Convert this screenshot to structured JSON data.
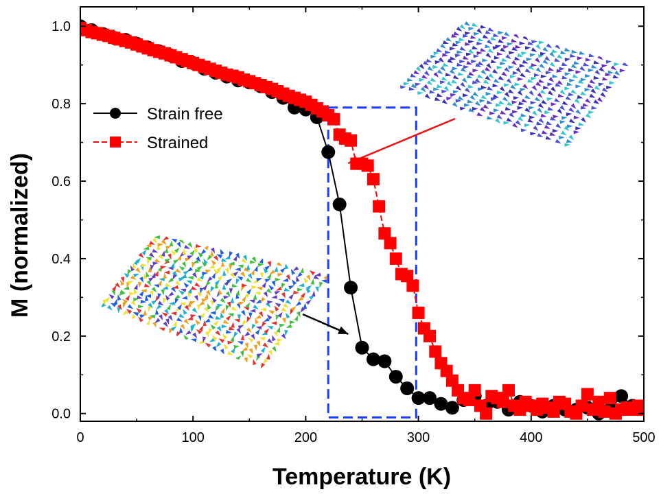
{
  "chart_data": {
    "type": "scatter",
    "title": "",
    "xlabel": "Temperature (K)",
    "ylabel": "M (normalized)",
    "xlim": [
      0,
      500
    ],
    "ylim": [
      -0.02,
      1.05
    ],
    "xticks": [
      0,
      100,
      200,
      300,
      400,
      500
    ],
    "yticks": [
      0.0,
      0.2,
      0.4,
      0.6,
      0.8,
      1.0
    ],
    "xtick_labels": [
      "0",
      "100",
      "200",
      "300",
      "400",
      "500"
    ],
    "ytick_labels": [
      "0.0",
      "0.2",
      "0.4",
      "0.6",
      "0.8",
      "1.0"
    ],
    "grid": false,
    "legend_position": "upper-left",
    "series": [
      {
        "name": "Strain free",
        "color": "#000000",
        "marker": "circle",
        "line_style": "solid",
        "x": [
          0,
          10,
          20,
          30,
          40,
          50,
          60,
          70,
          80,
          90,
          100,
          110,
          120,
          130,
          140,
          150,
          160,
          170,
          180,
          190,
          200,
          210,
          220,
          230,
          240,
          250,
          260,
          270,
          280,
          290,
          300,
          310,
          320,
          330,
          340,
          350,
          360,
          370,
          380,
          390,
          400,
          410,
          420,
          430,
          440,
          450,
          460,
          470,
          480,
          490,
          500
        ],
        "y": [
          1.0,
          0.99,
          0.98,
          0.97,
          0.965,
          0.955,
          0.945,
          0.935,
          0.925,
          0.91,
          0.905,
          0.89,
          0.88,
          0.87,
          0.86,
          0.855,
          0.845,
          0.83,
          0.815,
          0.79,
          0.785,
          0.765,
          0.675,
          0.54,
          0.325,
          0.17,
          0.14,
          0.135,
          0.095,
          0.065,
          0.04,
          0.04,
          0.025,
          0.015,
          0.035,
          0.045,
          0.02,
          0.03,
          0.01,
          0.03,
          0.02,
          0.005,
          0.02,
          0.01,
          0.01,
          0.015,
          0.0,
          0.01,
          0.045,
          0.02,
          0.015
        ]
      },
      {
        "name": "Strained",
        "color": "#ff0000",
        "marker": "square",
        "line_style": "dashed",
        "x": [
          0,
          5,
          10,
          15,
          20,
          25,
          30,
          35,
          40,
          45,
          50,
          55,
          60,
          65,
          70,
          75,
          80,
          85,
          90,
          95,
          100,
          105,
          110,
          115,
          120,
          125,
          130,
          135,
          140,
          145,
          150,
          155,
          160,
          165,
          170,
          175,
          180,
          185,
          190,
          195,
          200,
          205,
          210,
          215,
          220,
          225,
          230,
          235,
          240,
          245,
          250,
          255,
          260,
          265,
          270,
          275,
          280,
          285,
          290,
          295,
          300,
          305,
          310,
          315,
          320,
          325,
          330,
          335,
          340,
          345,
          350,
          355,
          360,
          365,
          370,
          375,
          380,
          385,
          390,
          395,
          400,
          405,
          410,
          415,
          420,
          425,
          430,
          435,
          440,
          445,
          450,
          455,
          460,
          465,
          470,
          475,
          480,
          485,
          490,
          495,
          500
        ],
        "y": [
          0.995,
          0.99,
          0.985,
          0.982,
          0.978,
          0.975,
          0.97,
          0.966,
          0.962,
          0.958,
          0.953,
          0.948,
          0.943,
          0.938,
          0.934,
          0.93,
          0.925,
          0.92,
          0.915,
          0.91,
          0.905,
          0.9,
          0.895,
          0.89,
          0.885,
          0.88,
          0.875,
          0.872,
          0.868,
          0.862,
          0.858,
          0.853,
          0.848,
          0.843,
          0.838,
          0.832,
          0.826,
          0.82,
          0.815,
          0.81,
          0.805,
          0.797,
          0.788,
          0.78,
          0.77,
          0.76,
          0.72,
          0.71,
          0.705,
          0.645,
          0.645,
          0.64,
          0.605,
          0.535,
          0.465,
          0.44,
          0.4,
          0.36,
          0.355,
          0.33,
          0.26,
          0.22,
          0.2,
          0.16,
          0.13,
          0.11,
          0.085,
          0.06,
          0.04,
          0.035,
          0.06,
          0.02,
          0.0,
          0.045,
          0.04,
          0.03,
          0.06,
          0.02,
          0.01,
          0.03,
          0.02,
          0.01,
          0.025,
          0.015,
          0.005,
          0.03,
          0.025,
          0.005,
          0.0,
          0.02,
          0.05,
          0.01,
          0.03,
          0.005,
          0.04,
          0.0,
          0.01,
          0.015,
          0.01,
          0.02,
          0.01
        ]
      }
    ],
    "annotations": {
      "dashed_box": {
        "color": "#1a3cff",
        "x_range": [
          220,
          298
        ],
        "y_range": [
          -0.01,
          0.79
        ]
      },
      "arrows": [
        {
          "color": "#000000",
          "points_to": [
            245,
            0.2
          ]
        },
        {
          "color": "#e81010",
          "points_to": [
            245,
            0.655
          ]
        }
      ],
      "insets": [
        {
          "description_icon": "spin-texture-ordered",
          "colors": [
            "#3c2fb8",
            "#4a4fd6",
            "#6a2fc2",
            "#2f8fd0",
            "#35c5d0"
          ]
        },
        {
          "description_icon": "spin-texture-disordered",
          "colors": [
            "#e63030",
            "#f0a020",
            "#f0e030",
            "#40c040",
            "#20b0d0",
            "#2060e0",
            "#6040c0"
          ]
        }
      ]
    }
  }
}
